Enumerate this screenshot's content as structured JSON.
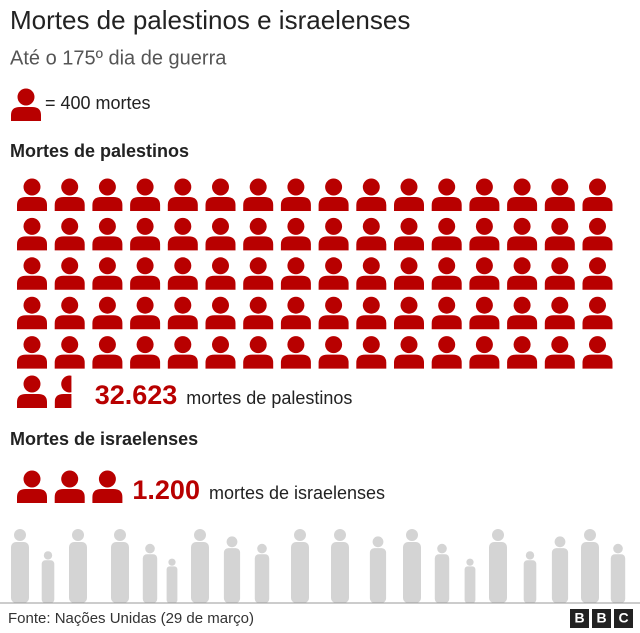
{
  "chart_data": {
    "type": "pictogram",
    "title": "Mortes de palestinos e israelenses",
    "subtitle": "Até o 175º dia de guerra",
    "unit": 400,
    "unit_label": "= 400 mortes",
    "color": "#b80000",
    "series": [
      {
        "name": "Mortes de palestinos",
        "values": [
          32623
        ],
        "value_labels": [
          "32.623"
        ],
        "label": "mortes de palestinos"
      },
      {
        "name": "Mortes de israelenses",
        "values": [
          1200
        ],
        "value_labels": [
          "1.200"
        ],
        "label": "mortes de israelenses"
      }
    ],
    "source": "Fonte: Nações Unidas (29 de março)",
    "logo": [
      "B",
      "B",
      "C"
    ]
  }
}
